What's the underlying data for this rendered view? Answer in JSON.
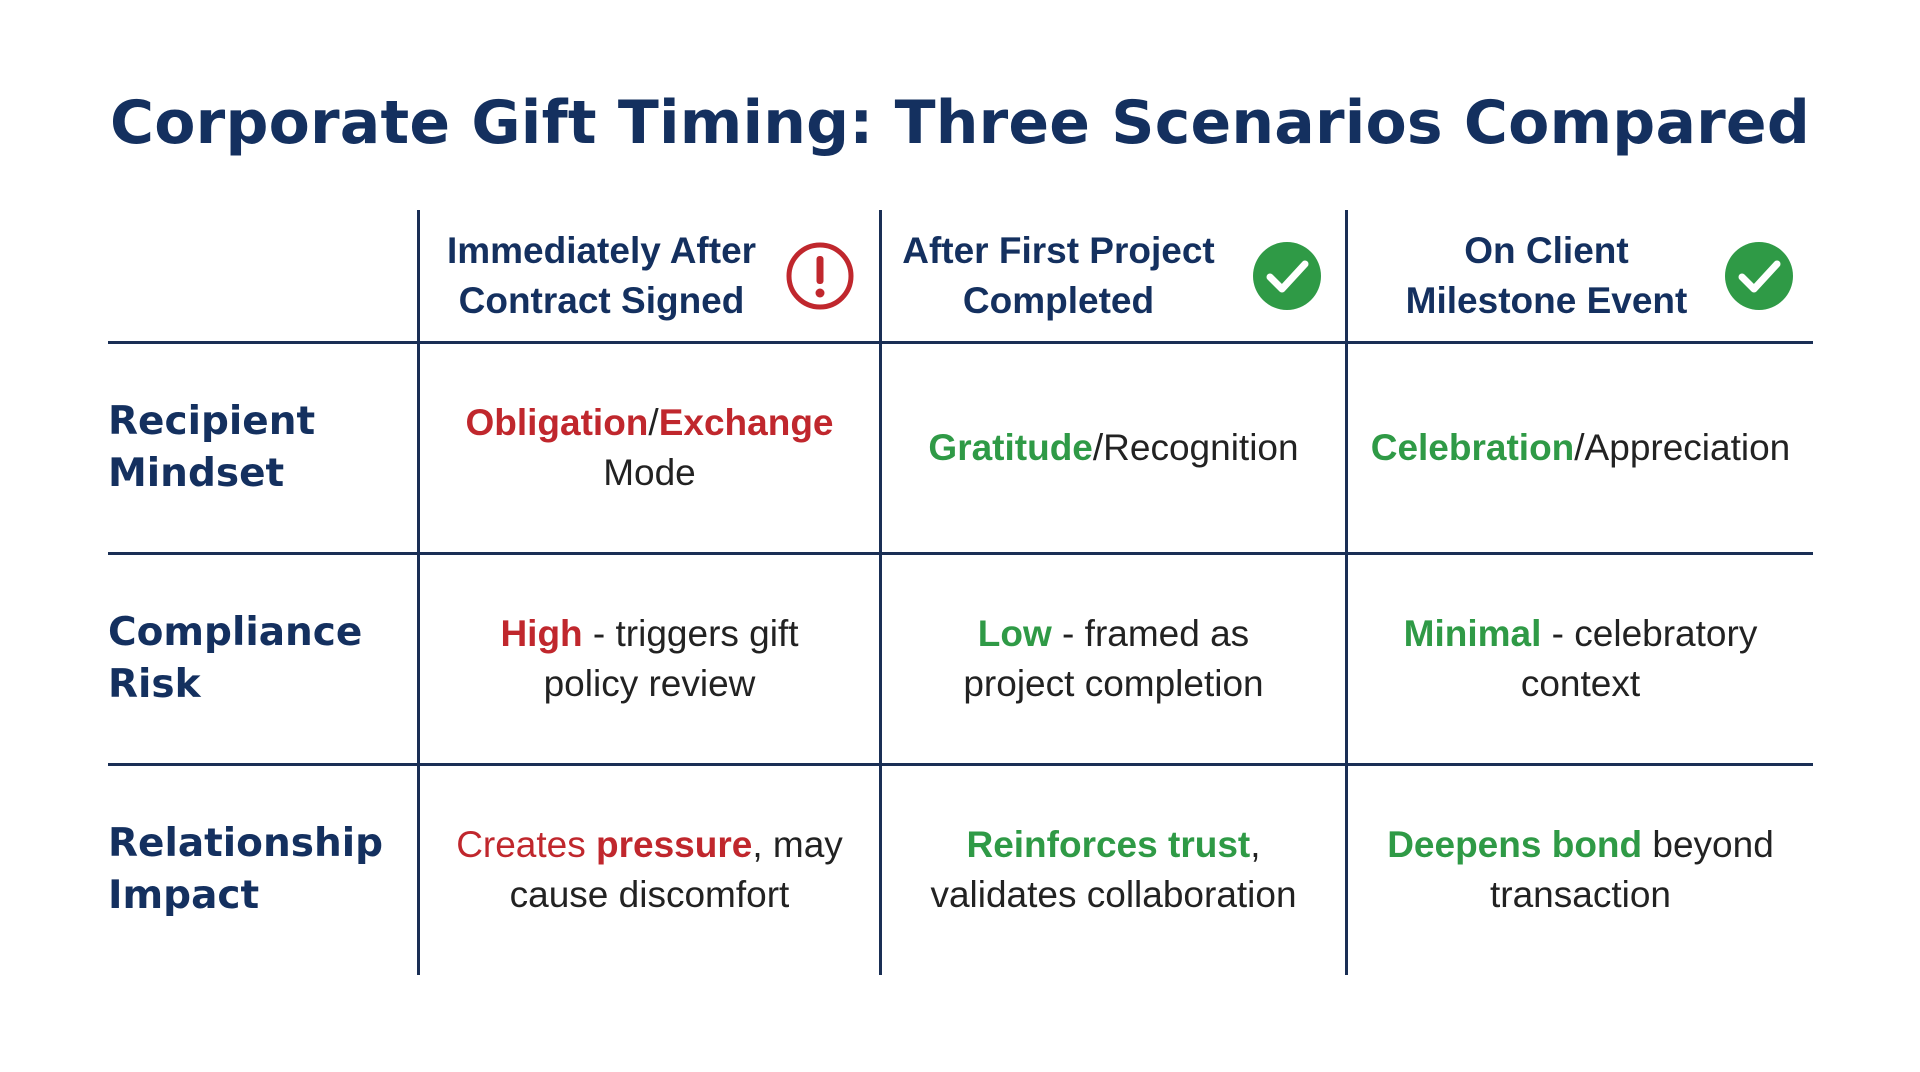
{
  "title": "Corporate Gift Timing: Three Scenarios Compared",
  "colors": {
    "navy": "#14305f",
    "risk_red": "#c0272d",
    "positive_green": "#2f9a46"
  },
  "columns": [
    {
      "line1": "Immediately After",
      "line2": "Contract Signed",
      "icon": "exclamation-circle-icon"
    },
    {
      "line1": "After First Project",
      "line2": "Completed",
      "icon": "check-circle-icon"
    },
    {
      "line1": "On Client",
      "line2": "Milestone Event",
      "icon": "check-circle-icon"
    }
  ],
  "rows": [
    {
      "label_line1": "Recipient",
      "label_line2": "Mindset",
      "cells": [
        {
          "a": "Obligation",
          "sep": "/",
          "b": "Exchange",
          "rest": "Mode"
        },
        {
          "a": "Gratitude",
          "rest": "/Recognition"
        },
        {
          "a": "Celebration",
          "rest": "/Appreciation"
        }
      ]
    },
    {
      "label_line1": "Compliance",
      "label_line2": "Risk",
      "cells": [
        {
          "a": "High",
          "rest": " - triggers gift",
          "line2": "policy review"
        },
        {
          "a": "Low",
          "rest": " - framed as",
          "line2": "project completion"
        },
        {
          "a": "Minimal",
          "rest": " - celebratory",
          "line2": "context"
        }
      ]
    },
    {
      "label_line1": "Relationship",
      "label_line2": "Impact",
      "cells": [
        {
          "pre": "Creates ",
          "a": "pressure",
          "rest": ", may",
          "line2": "cause discomfort"
        },
        {
          "a": "Reinforces trust",
          "rest": ",",
          "line2": "validates collaboration"
        },
        {
          "a": "Deepens bond",
          "rest": " beyond",
          "line2": "transaction"
        }
      ]
    }
  ]
}
